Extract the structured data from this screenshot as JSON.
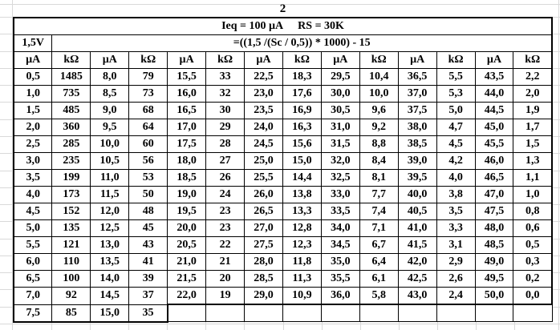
{
  "table": {
    "title": "2",
    "ieq_label": "Ieq = 100 µA",
    "rs_label": "RS = 30K",
    "voltage": "1,5V",
    "formula": "=((1,5 /(Sc / 0,5)) * 1000) - 15",
    "column_headers": [
      "µA",
      "kΩ",
      "µA",
      "kΩ",
      "µA",
      "kΩ",
      "µA",
      "kΩ",
      "µA",
      "kΩ",
      "µA",
      "kΩ",
      "µA",
      "kΩ"
    ],
    "rows": [
      [
        "0,5",
        "1485",
        "8,0",
        "79",
        "15,5",
        "33",
        "22,5",
        "18,3",
        "29,5",
        "10,4",
        "36,5",
        "5,5",
        "43,5",
        "2,2"
      ],
      [
        "1,0",
        "735",
        "8,5",
        "73",
        "16,0",
        "32",
        "23,0",
        "17,6",
        "30,0",
        "10,0",
        "37,0",
        "5,3",
        "44,0",
        "2,0"
      ],
      [
        "1,5",
        "485",
        "9,0",
        "68",
        "16,5",
        "30",
        "23,5",
        "16,9",
        "30,5",
        "9,6",
        "37,5",
        "5,0",
        "44,5",
        "1,9"
      ],
      [
        "2,0",
        "360",
        "9,5",
        "64",
        "17,0",
        "29",
        "24,0",
        "16,3",
        "31,0",
        "9,2",
        "38,0",
        "4,7",
        "45,0",
        "1,7"
      ],
      [
        "2,5",
        "285",
        "10,0",
        "60",
        "17,5",
        "28",
        "24,5",
        "15,6",
        "31,5",
        "8,8",
        "38,5",
        "4,5",
        "45,5",
        "1,5"
      ],
      [
        "3,0",
        "235",
        "10,5",
        "56",
        "18,0",
        "27",
        "25,0",
        "15,0",
        "32,0",
        "8,4",
        "39,0",
        "4,2",
        "46,0",
        "1,3"
      ],
      [
        "3,5",
        "199",
        "11,0",
        "53",
        "18,5",
        "26",
        "25,5",
        "14,4",
        "32,5",
        "8,1",
        "39,5",
        "4,0",
        "46,5",
        "1,1"
      ],
      [
        "4,0",
        "173",
        "11,5",
        "50",
        "19,0",
        "24",
        "26,0",
        "13,8",
        "33,0",
        "7,7",
        "40,0",
        "3,8",
        "47,0",
        "1,0"
      ],
      [
        "4,5",
        "152",
        "12,0",
        "48",
        "19,5",
        "23",
        "26,5",
        "13,3",
        "33,5",
        "7,4",
        "40,5",
        "3,5",
        "47,5",
        "0,8"
      ],
      [
        "5,0",
        "135",
        "12,5",
        "45",
        "20,0",
        "23",
        "27,0",
        "12,8",
        "34,0",
        "7,1",
        "41,0",
        "3,3",
        "48,0",
        "0,6"
      ],
      [
        "5,5",
        "121",
        "13,0",
        "43",
        "20,5",
        "22",
        "27,5",
        "12,3",
        "34,5",
        "6,7",
        "41,5",
        "3,1",
        "48,5",
        "0,5"
      ],
      [
        "6,0",
        "110",
        "13,5",
        "41",
        "21,0",
        "21",
        "28,0",
        "11,8",
        "35,0",
        "6,4",
        "42,0",
        "2,9",
        "49,0",
        "0,3"
      ],
      [
        "6,5",
        "100",
        "14,0",
        "39",
        "21,5",
        "20",
        "28,5",
        "11,3",
        "35,5",
        "6,1",
        "42,5",
        "2,6",
        "49,5",
        "0,2"
      ],
      [
        "7,0",
        "92",
        "14,5",
        "37",
        "22,0",
        "19",
        "29,0",
        "10,9",
        "36,0",
        "5,8",
        "43,0",
        "2,4",
        "50,0",
        "0,0"
      ],
      [
        "7,5",
        "85",
        "15,0",
        "35"
      ]
    ]
  }
}
